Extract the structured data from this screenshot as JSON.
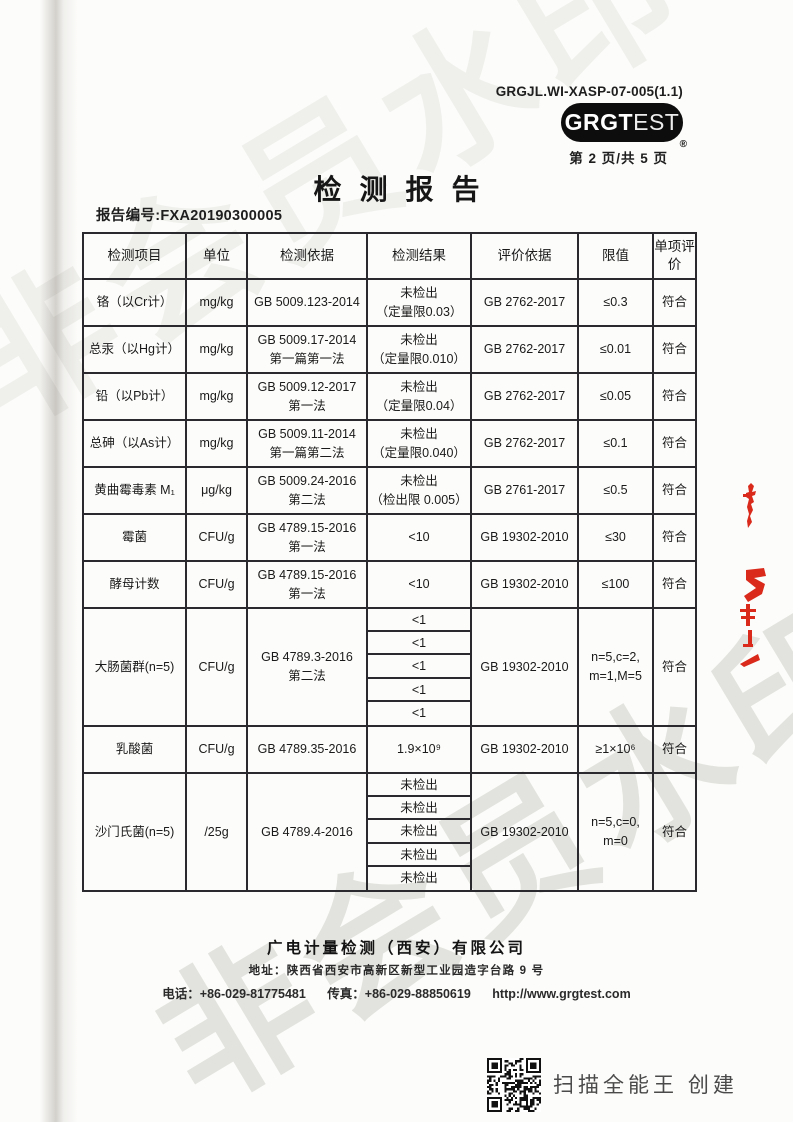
{
  "header": {
    "doc_code": "GRGJL.WI-XASP-07-005(1.1)",
    "logo": {
      "bold": "GRGT",
      "light": "EST",
      "registered": "®"
    },
    "page_info": "第 2 页/共 5 页"
  },
  "title": "检测报告",
  "report_no": "报告编号:FXA20190300005",
  "table": {
    "headers": [
      "检测项目",
      "单位",
      "检测依据",
      "检测结果",
      "评价依据",
      "限值",
      "单项评价"
    ],
    "rows": [
      {
        "item": "铬（以Cr计）",
        "unit": "mg/kg",
        "basis": [
          "GB 5009.123-2014"
        ],
        "result": [
          "未检出",
          "（定量限0.03）"
        ],
        "evaluation": "GB 2762-2017",
        "limit": [
          "≤0.3"
        ],
        "verdict": "符合"
      },
      {
        "item": "总汞（以Hg计）",
        "unit": "mg/kg",
        "basis": [
          "GB 5009.17-2014",
          "第一篇第一法"
        ],
        "result": [
          "未检出",
          "（定量限0.010）"
        ],
        "evaluation": "GB 2762-2017",
        "limit": [
          "≤0.01"
        ],
        "verdict": "符合"
      },
      {
        "item": "铅（以Pb计）",
        "unit": "mg/kg",
        "basis": [
          "GB 5009.12-2017",
          "第一法"
        ],
        "result": [
          "未检出",
          "（定量限0.04）"
        ],
        "evaluation": "GB 2762-2017",
        "limit": [
          "≤0.05"
        ],
        "verdict": "符合"
      },
      {
        "item": "总砷（以As计）",
        "unit": "mg/kg",
        "basis": [
          "GB 5009.11-2014",
          "第一篇第二法"
        ],
        "result": [
          "未检出",
          "（定量限0.040）"
        ],
        "evaluation": "GB 2762-2017",
        "limit": [
          "≤0.1"
        ],
        "verdict": "符合"
      },
      {
        "item": "黄曲霉毒素 M₁",
        "unit": "μg/kg",
        "basis": [
          "GB 5009.24-2016",
          "第二法"
        ],
        "result": [
          "未检出",
          "（检出限 0.005）"
        ],
        "evaluation": "GB 2761-2017",
        "limit": [
          "≤0.5"
        ],
        "verdict": "符合"
      },
      {
        "item": "霉菌",
        "unit": "CFU/g",
        "basis": [
          "GB 4789.15-2016",
          "第一法"
        ],
        "result": [
          "<10"
        ],
        "evaluation": "GB 19302-2010",
        "limit": [
          "≤30"
        ],
        "verdict": "符合"
      },
      {
        "item": "酵母计数",
        "unit": "CFU/g",
        "basis": [
          "GB 4789.15-2016",
          "第一法"
        ],
        "result": [
          "<10"
        ],
        "evaluation": "GB 19302-2010",
        "limit": [
          "≤100"
        ],
        "verdict": "符合"
      },
      {
        "item": "大肠菌群(n=5)",
        "unit": "CFU/g",
        "basis": [
          "GB 4789.3-2016",
          "第二法"
        ],
        "results": [
          "<1",
          "<1",
          "<1",
          "<1",
          "<1"
        ],
        "evaluation": "GB 19302-2010",
        "limit": [
          "n=5,c=2,",
          "m=1,M=5"
        ],
        "verdict": "符合"
      },
      {
        "item": "乳酸菌",
        "unit": "CFU/g",
        "basis": [
          "GB 4789.35-2016"
        ],
        "result": [
          "1.9×10⁹"
        ],
        "evaluation": "GB 19302-2010",
        "limit": [
          "≥1×10⁶"
        ],
        "verdict": "符合"
      },
      {
        "item": "沙门氏菌(n=5)",
        "unit": "/25g",
        "basis": [
          "GB 4789.4-2016"
        ],
        "results": [
          "未检出",
          "未检出",
          "未检出",
          "未检出",
          "未检出"
        ],
        "evaluation": "GB 19302-2010",
        "limit": [
          "n=5,c=0,",
          "m=0"
        ],
        "verdict": "符合"
      }
    ]
  },
  "footer": {
    "company": "广电计量检测（西安）有限公司",
    "address": "地址：陕西省西安市高新区新型工业园造字台路 9 号",
    "contact": {
      "phone": "电话：+86-029-81775481",
      "fax": "传真：+86-029-88850619",
      "website": "http://www.grgtest.com"
    }
  },
  "scanner_caption": "扫描全能王 创建",
  "watermark": {
    "text": "非会员水印"
  },
  "colors": {
    "stamp_red": "#d92a1c",
    "watermark_gray": "#a9a9a1",
    "logo_black": "#0d0d0d",
    "ink": "#1e1e1e"
  }
}
